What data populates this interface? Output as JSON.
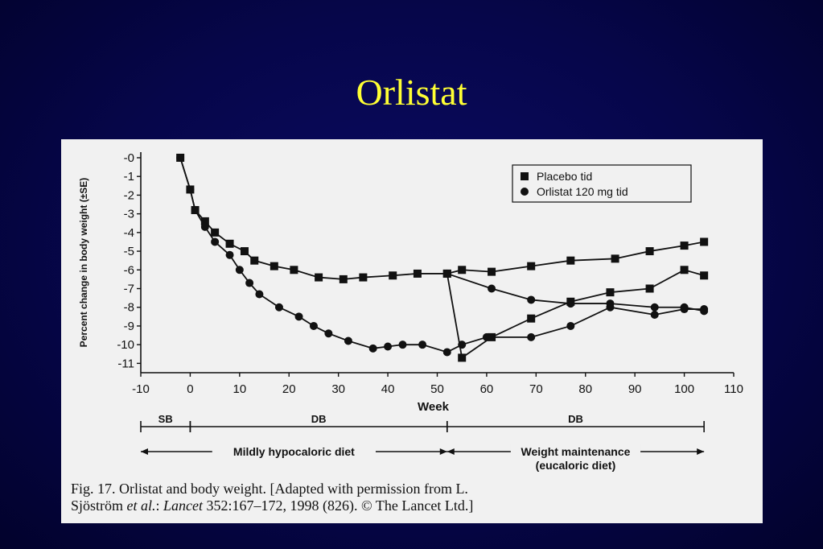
{
  "slide": {
    "title": "Orlistat"
  },
  "caption": {
    "line1": "Fig. 17.  Orlistat and body weight. [Adapted with permission from L.",
    "line2a": "Sjöström ",
    "line2b": "et al.",
    "line2c": ": ",
    "line2d": "Lancet",
    "line2e": " 352:167–172, 1998 (826). © The Lancet Ltd.]"
  },
  "chart_data": {
    "type": "line",
    "xlabel": "Week",
    "ylabel": "Percent change in body weight (±SE)",
    "xlim": [
      -10,
      110
    ],
    "ylim": [
      -11.5,
      0.3
    ],
    "xticks": [
      -10,
      0,
      10,
      20,
      30,
      40,
      50,
      60,
      70,
      80,
      90,
      100,
      110
    ],
    "yticks": [
      0,
      -1,
      -2,
      -3,
      -4,
      -5,
      -6,
      -7,
      -8,
      -9,
      -10,
      -11
    ],
    "legend_position": "top-right",
    "series": [
      {
        "name": "Placebo tid",
        "marker": "square",
        "points": [
          [
            -2,
            0
          ],
          [
            0,
            -1.7
          ],
          [
            1,
            -2.8
          ],
          [
            3,
            -3.4
          ],
          [
            5,
            -4
          ],
          [
            8,
            -4.6
          ],
          [
            11,
            -5
          ],
          [
            13,
            -5.5
          ],
          [
            17,
            -5.8
          ],
          [
            21,
            -6
          ],
          [
            26,
            -6.4
          ],
          [
            31,
            -6.5
          ],
          [
            35,
            -6.4
          ],
          [
            41,
            -6.3
          ],
          [
            46,
            -6.2
          ],
          [
            52,
            -6.2
          ],
          [
            55,
            -6.0
          ],
          [
            61,
            -6.1
          ],
          [
            69,
            -5.8
          ],
          [
            77,
            -5.5
          ],
          [
            86,
            -5.4
          ],
          [
            93,
            -5
          ],
          [
            100,
            -4.7
          ],
          [
            104,
            -4.5
          ]
        ]
      },
      {
        "name": "Orlistat 120 mg tid",
        "marker": "circle",
        "points": [
          [
            -2,
            0
          ],
          [
            0,
            -1.7
          ],
          [
            1,
            -2.8
          ],
          [
            3,
            -3.7
          ],
          [
            5,
            -4.5
          ],
          [
            8,
            -5.2
          ],
          [
            10,
            -6
          ],
          [
            12,
            -6.7
          ],
          [
            14,
            -7.3
          ],
          [
            18,
            -8
          ],
          [
            22,
            -8.5
          ],
          [
            25,
            -9
          ],
          [
            28,
            -9.4
          ],
          [
            32,
            -9.8
          ],
          [
            37,
            -10.2
          ],
          [
            40,
            -10.1
          ],
          [
            43,
            -10.0
          ],
          [
            47,
            -10.0
          ],
          [
            52,
            -10.4
          ],
          [
            55,
            -10.0
          ],
          [
            60,
            -9.6
          ],
          [
            69,
            -9.6
          ],
          [
            77,
            -9.0
          ],
          [
            85,
            -8.0
          ],
          [
            94,
            -8.4
          ],
          [
            100,
            -8.1
          ],
          [
            104,
            -8.1
          ]
        ]
      },
      {
        "name": "",
        "marker": "square",
        "points": [
          [
            52,
            -6.2
          ],
          [
            55,
            -10.7
          ],
          [
            61,
            -9.6
          ],
          [
            69,
            -8.6
          ],
          [
            77,
            -7.7
          ],
          [
            85,
            -7.2
          ],
          [
            93,
            -7.0
          ],
          [
            100,
            -6.0
          ],
          [
            104,
            -6.3
          ]
        ]
      },
      {
        "name": "",
        "marker": "circle",
        "points": [
          [
            52,
            -6.2
          ],
          [
            61,
            -7.0
          ],
          [
            69,
            -7.6
          ],
          [
            77,
            -7.8
          ],
          [
            85,
            -7.8
          ],
          [
            94,
            -8.0
          ],
          [
            100,
            -8.0
          ],
          [
            104,
            -8.2
          ]
        ]
      }
    ],
    "phases": [
      {
        "label": "SB",
        "from": -10,
        "to": 0
      },
      {
        "label": "DB",
        "from": 0,
        "to": 52
      },
      {
        "label": "DB",
        "from": 52,
        "to": 104
      }
    ],
    "periods": [
      {
        "label": "Mildly hypocaloric diet",
        "from": -10,
        "to": 52
      },
      {
        "label": "Weight maintenance",
        "label2": "(eucaloric diet)",
        "from": 52,
        "to": 104
      }
    ]
  }
}
